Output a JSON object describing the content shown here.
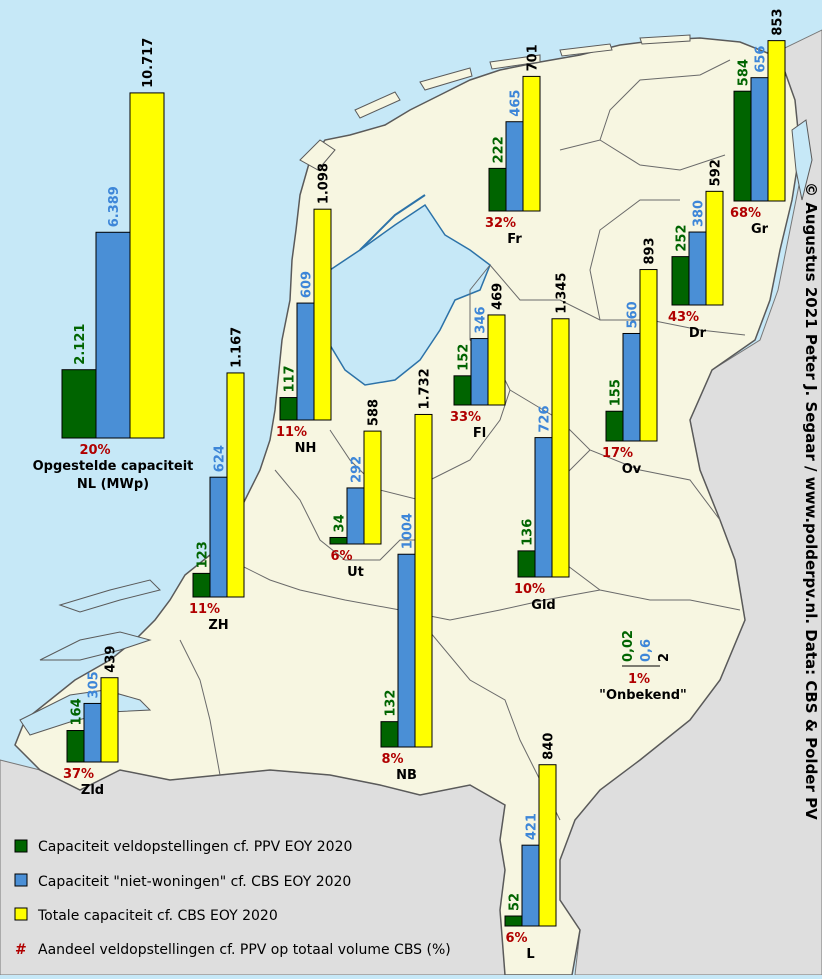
{
  "colors": {
    "sea": "#c6e8f7",
    "land": "#f7f6e1",
    "foreign": "#dedede",
    "border": "#555555",
    "field": "#006400",
    "nonres": "#4a8fd6",
    "total": "#ffff00",
    "share": "#b00000"
  },
  "copyright": "© Augustus 2021 Peter J. Segaar / www.polderpv.nl. Data: CBS & Polder PV",
  "legend": {
    "field_label": "Capaciteit veldopstellingen cf. PPV EOY 2020",
    "nonres_label": "Capaciteit \"niet-woningen\" cf. CBS EOY 2020",
    "total_label": "Totale capaciteit cf. CBS EOY 2020",
    "share_marker": "#",
    "share_label": "Aandeel veldopstellingen cf. PPV op totaal volume CBS (%)"
  },
  "unknown": {
    "field": "0,02",
    "nonres": "0,6",
    "total": "2",
    "share": "1%",
    "name": "\"Onbekend\""
  },
  "chart_data": {
    "type": "bar",
    "unit": "MWp",
    "series_keys": [
      "field",
      "nonres",
      "total"
    ],
    "regions": [
      {
        "id": "nl",
        "name": "Opgestelde capaciteit",
        "name2": "NL (MWp)",
        "field": 2121,
        "nonres": 6389,
        "total": 10717,
        "labels": [
          "2.121",
          "6.389",
          "10.717"
        ],
        "share": "20%"
      },
      {
        "id": "gr",
        "name": "Gr",
        "field": 584,
        "nonres": 656,
        "total": 853,
        "labels": [
          "584",
          "656",
          "853"
        ],
        "share": "68%"
      },
      {
        "id": "fr",
        "name": "Fr",
        "field": 222,
        "nonres": 465,
        "total": 701,
        "labels": [
          "222",
          "465",
          "701"
        ],
        "share": "32%"
      },
      {
        "id": "dr",
        "name": "Dr",
        "field": 252,
        "nonres": 380,
        "total": 592,
        "labels": [
          "252",
          "380",
          "592"
        ],
        "share": "43%"
      },
      {
        "id": "nh",
        "name": "NH",
        "field": 117,
        "nonres": 609,
        "total": 1098,
        "labels": [
          "117",
          "609",
          "1.098"
        ],
        "share": "11%"
      },
      {
        "id": "fl",
        "name": "Fl",
        "field": 152,
        "nonres": 346,
        "total": 469,
        "labels": [
          "152",
          "346",
          "469"
        ],
        "share": "33%"
      },
      {
        "id": "ov",
        "name": "Ov",
        "field": 155,
        "nonres": 560,
        "total": 893,
        "labels": [
          "155",
          "560",
          "893"
        ],
        "share": "17%"
      },
      {
        "id": "gld",
        "name": "Gld",
        "field": 136,
        "nonres": 726,
        "total": 1345,
        "labels": [
          "136",
          "726",
          "1.345"
        ],
        "share": "10%"
      },
      {
        "id": "ut",
        "name": "Ut",
        "field": 34,
        "nonres": 292,
        "total": 588,
        "labels": [
          "34",
          "292",
          "588"
        ],
        "share": "6%"
      },
      {
        "id": "zh",
        "name": "ZH",
        "field": 123,
        "nonres": 624,
        "total": 1167,
        "labels": [
          "123",
          "624",
          "1.167"
        ],
        "share": "11%"
      },
      {
        "id": "nb",
        "name": "NB",
        "field": 132,
        "nonres": 1004,
        "total": 1732,
        "labels": [
          "132",
          "1004",
          "1.732"
        ],
        "share": "8%"
      },
      {
        "id": "zld",
        "name": "Zld",
        "field": 164,
        "nonres": 305,
        "total": 439,
        "labels": [
          "164",
          "305",
          "439"
        ],
        "share": "37%"
      },
      {
        "id": "l",
        "name": "L",
        "field": 52,
        "nonres": 421,
        "total": 840,
        "labels": [
          "52",
          "421",
          "840"
        ],
        "share": "6%"
      }
    ]
  }
}
